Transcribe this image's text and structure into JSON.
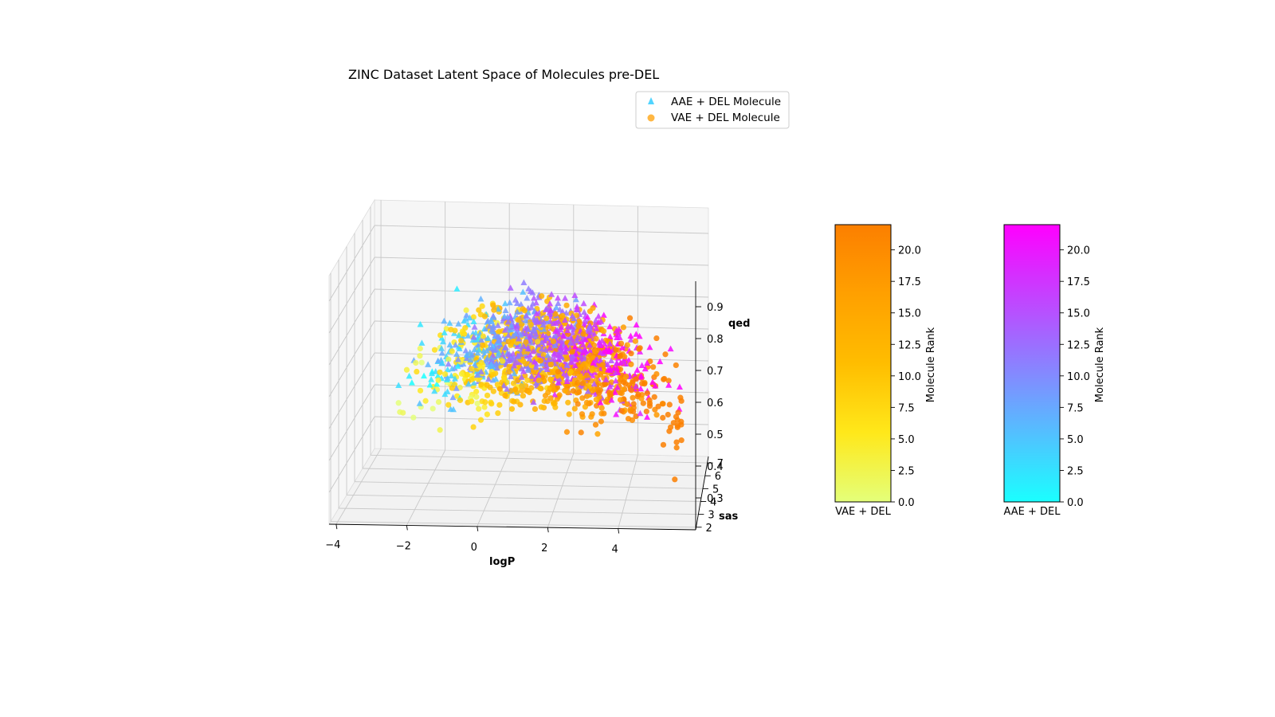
{
  "chart_data": {
    "type": "scatter",
    "dimensions": "3d",
    "title": "ZINC Dataset Latent Space of Molecules pre-DEL",
    "axes": {
      "x": {
        "label": "logP",
        "ticks": [
          "−4",
          "−2",
          "0",
          "2",
          "4"
        ],
        "range": [
          -4.2,
          6.2
        ]
      },
      "y": {
        "label": "sas",
        "ticks": [
          "2",
          "3",
          "4",
          "5",
          "6",
          "7"
        ],
        "range": [
          1.8,
          7.5
        ]
      },
      "z": {
        "label": "qed",
        "ticks": [
          "0.3",
          "0.4",
          "0.5",
          "0.6",
          "0.7",
          "0.8",
          "0.9"
        ],
        "range": [
          0.2,
          0.98
        ]
      }
    },
    "grid": true,
    "legend": {
      "placement": "top-right of plot",
      "entries": [
        {
          "label": "AAE + DEL Molecule",
          "marker": "triangle",
          "color": "#33ccff"
        },
        {
          "label": "VAE + DEL Molecule",
          "marker": "circle",
          "color": "#ffaa22"
        }
      ]
    },
    "series": [
      {
        "name": "AAE + DEL Molecule",
        "marker": "triangle",
        "colormap": "cool",
        "count_estimate": 900,
        "center": {
          "logP": 1.6,
          "sas": 3.2,
          "qed": 0.72
        },
        "spread": {
          "logP": 1.5,
          "sas": 0.8,
          "qed": 0.11
        }
      },
      {
        "name": "VAE + DEL Molecule",
        "marker": "circle",
        "colormap": "Wistia",
        "count_estimate": 900,
        "center": {
          "logP": 2.0,
          "sas": 3.4,
          "qed": 0.67
        },
        "spread": {
          "logP": 1.7,
          "sas": 0.9,
          "qed": 0.13
        }
      }
    ],
    "colorbars": [
      {
        "caption": "VAE + DEL",
        "label": "Molecule Rank",
        "range": [
          0,
          22
        ],
        "ticks": [
          "0.0",
          "2.5",
          "5.0",
          "7.5",
          "10.0",
          "12.5",
          "15.0",
          "17.5",
          "20.0"
        ],
        "colors": [
          "#e4ff7a",
          "#ffe81a",
          "#ffbd00",
          "#ffa000",
          "#fc7f00"
        ]
      },
      {
        "caption": "AAE + DEL",
        "label": "Molecule Rank",
        "range": [
          0,
          22
        ],
        "ticks": [
          "0.0",
          "2.5",
          "5.0",
          "7.5",
          "10.0",
          "12.5",
          "15.0",
          "17.5",
          "20.0"
        ],
        "colors": [
          "#1affff",
          "#ff00ff"
        ]
      }
    ]
  }
}
